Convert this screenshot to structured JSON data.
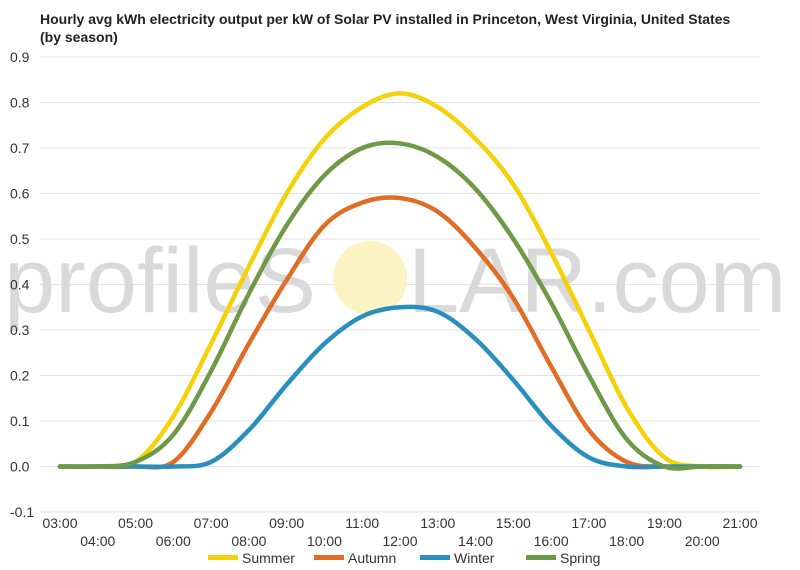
{
  "watermark": {
    "left": "profileS",
    "right": "LAR.com"
  },
  "chart_data": {
    "type": "line",
    "title": "Hourly avg kWh electricity output per kW of Solar PV installed in Princeton, West Virginia, United States (by season)",
    "xlabel": "",
    "ylabel": "",
    "x": [
      "03:00",
      "04:00",
      "05:00",
      "06:00",
      "07:00",
      "08:00",
      "09:00",
      "10:00",
      "11:00",
      "12:00",
      "13:00",
      "14:00",
      "15:00",
      "16:00",
      "17:00",
      "18:00",
      "19:00",
      "20:00",
      "21:00"
    ],
    "ylim": [
      -0.1,
      0.9
    ],
    "yticks": [
      -0.1,
      0.0,
      0.1,
      0.2,
      0.3,
      0.4,
      0.5,
      0.6,
      0.7,
      0.8,
      0.9
    ],
    "ytick_labels": [
      "-0.1",
      "0.0",
      "0.1",
      "0.2",
      "0.3",
      "0.4",
      "0.5",
      "0.6",
      "0.7",
      "0.8",
      "0.9"
    ],
    "grid": true,
    "legend_position": "bottom",
    "series": [
      {
        "name": "Summer",
        "color": "#f5d10a",
        "values": [
          0,
          0,
          0.01,
          0.11,
          0.27,
          0.44,
          0.6,
          0.72,
          0.79,
          0.82,
          0.79,
          0.72,
          0.62,
          0.47,
          0.3,
          0.13,
          0.02,
          0,
          0
        ]
      },
      {
        "name": "Autumn",
        "color": "#e06c25",
        "values": [
          0,
          0,
          0,
          0.01,
          0.12,
          0.27,
          0.41,
          0.53,
          0.58,
          0.59,
          0.56,
          0.48,
          0.37,
          0.22,
          0.08,
          0.01,
          0,
          0,
          0
        ]
      },
      {
        "name": "Winter",
        "color": "#2a8fbd",
        "values": [
          0,
          0,
          0,
          0,
          0.01,
          0.08,
          0.18,
          0.27,
          0.33,
          0.35,
          0.34,
          0.28,
          0.19,
          0.09,
          0.02,
          0,
          0,
          0,
          0
        ]
      },
      {
        "name": "Spring",
        "color": "#6e9a48",
        "values": [
          0,
          0,
          0.01,
          0.07,
          0.21,
          0.38,
          0.53,
          0.64,
          0.7,
          0.71,
          0.68,
          0.61,
          0.5,
          0.36,
          0.2,
          0.06,
          0,
          0,
          0
        ]
      }
    ]
  }
}
